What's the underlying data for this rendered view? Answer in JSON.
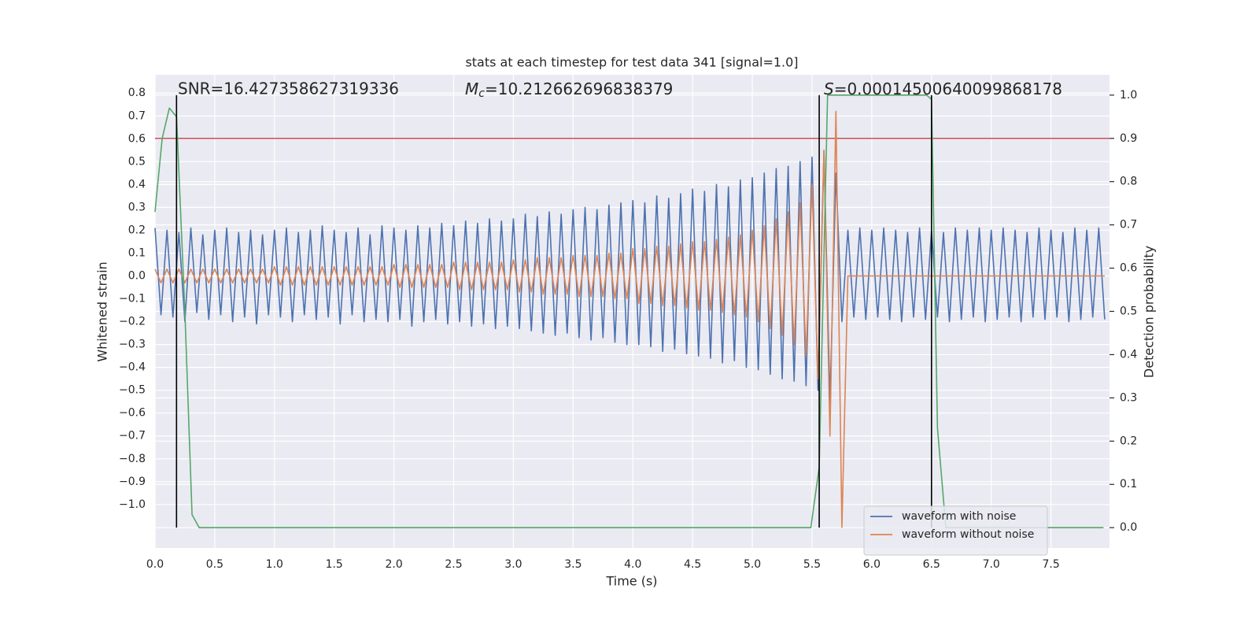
{
  "chart_data": {
    "type": "line",
    "title": "stats at each timestep for test data 341 [signal=1.0]",
    "xlabel": "Time (s)",
    "ylabel": "Whitened strain",
    "y2label": "Detection probability",
    "xlim": [
      0,
      7.99
    ],
    "ylim": [
      -1.19,
      0.88
    ],
    "y2lim": [
      -0.047,
      1.047
    ],
    "xticks": [
      {
        "value": 0,
        "label": "0.0"
      },
      {
        "value": 0.5,
        "label": "0.5"
      },
      {
        "value": 1,
        "label": "1.0"
      },
      {
        "value": 1.5,
        "label": "1.5"
      },
      {
        "value": 2,
        "label": "2.0"
      },
      {
        "value": 2.5,
        "label": "2.5"
      },
      {
        "value": 3,
        "label": "3.0"
      },
      {
        "value": 3.5,
        "label": "3.5"
      },
      {
        "value": 4,
        "label": "4.0"
      },
      {
        "value": 4.5,
        "label": "4.5"
      },
      {
        "value": 5,
        "label": "5.0"
      },
      {
        "value": 5.5,
        "label": "5.5"
      },
      {
        "value": 6,
        "label": "6.0"
      },
      {
        "value": 6.5,
        "label": "6.5"
      },
      {
        "value": 7,
        "label": "7.0"
      },
      {
        "value": 7.5,
        "label": "7.5"
      }
    ],
    "yticks": [
      {
        "value": 0.8,
        "label": "0.8"
      },
      {
        "value": 0.7,
        "label": "0.7"
      },
      {
        "value": 0.6,
        "label": "0.6"
      },
      {
        "value": 0.5,
        "label": "0.5"
      },
      {
        "value": 0.4,
        "label": "0.4"
      },
      {
        "value": 0.3,
        "label": "0.3"
      },
      {
        "value": 0.2,
        "label": "0.2"
      },
      {
        "value": 0.1,
        "label": "0.1"
      },
      {
        "value": 0,
        "label": "0.0"
      },
      {
        "value": -0.1,
        "label": "−0.1"
      },
      {
        "value": -0.2,
        "label": "−0.2"
      },
      {
        "value": -0.3,
        "label": "−0.3"
      },
      {
        "value": -0.4,
        "label": "−0.4"
      },
      {
        "value": -0.5,
        "label": "−0.5"
      },
      {
        "value": -0.6,
        "label": "−0.6"
      },
      {
        "value": -0.7,
        "label": "−0.7"
      },
      {
        "value": -0.8,
        "label": "−0.8"
      },
      {
        "value": -0.9,
        "label": "−0.9"
      },
      {
        "value": -1,
        "label": "−1.0"
      }
    ],
    "y2ticks": [
      {
        "value": 0,
        "label": "0.0"
      },
      {
        "value": 0.1,
        "label": "0.1"
      },
      {
        "value": 0.2,
        "label": "0.2"
      },
      {
        "value": 0.3,
        "label": "0.3"
      },
      {
        "value": 0.4,
        "label": "0.4"
      },
      {
        "value": 0.5,
        "label": "0.5"
      },
      {
        "value": 0.6,
        "label": "0.6"
      },
      {
        "value": 0.7,
        "label": "0.7"
      },
      {
        "value": 0.8,
        "label": "0.8"
      },
      {
        "value": 0.9,
        "label": "0.9"
      },
      {
        "value": 1,
        "label": "1.0"
      }
    ],
    "grid": true,
    "legend": "lower right",
    "annotations": [
      {
        "text": "SNR=16.427358627319336"
      },
      {
        "symbol": "M",
        "subscript": "c",
        "text": "=10.212662696838379"
      },
      {
        "symbol": "S",
        "text": "=0.00014500640099868178"
      }
    ],
    "threshold": {
      "value": 0.9,
      "axis": "y2",
      "color": "#c44e52"
    },
    "vlines": {
      "x": [
        0.18,
        5.56,
        6.5
      ],
      "color": "#000000"
    },
    "series": [
      {
        "name": "waveform with noise",
        "color": "#4c72b0",
        "x": [
          0,
          0.05,
          0.1,
          0.15,
          0.2,
          0.25,
          0.3,
          0.35,
          0.4,
          0.45,
          0.5,
          0.55,
          0.6,
          0.65,
          0.7,
          0.75,
          0.8,
          0.85,
          0.9,
          0.95,
          1,
          1.05,
          1.1,
          1.15,
          1.2,
          1.25,
          1.3,
          1.35,
          1.4,
          1.45,
          1.5,
          1.55,
          1.6,
          1.65,
          1.7,
          1.75,
          1.8,
          1.85,
          1.9,
          1.95,
          2,
          2.05,
          2.1,
          2.15,
          2.2,
          2.25,
          2.3,
          2.35,
          2.4,
          2.45,
          2.5,
          2.55,
          2.6,
          2.65,
          2.7,
          2.75,
          2.8,
          2.85,
          2.9,
          2.95,
          3,
          3.05,
          3.1,
          3.15,
          3.2,
          3.25,
          3.3,
          3.35,
          3.4,
          3.45,
          3.5,
          3.55,
          3.6,
          3.65,
          3.7,
          3.75,
          3.8,
          3.85,
          3.9,
          3.95,
          4,
          4.05,
          4.1,
          4.15,
          4.2,
          4.25,
          4.3,
          4.35,
          4.4,
          4.45,
          4.5,
          4.55,
          4.6,
          4.65,
          4.7,
          4.75,
          4.8,
          4.85,
          4.9,
          4.95,
          5,
          5.05,
          5.1,
          5.15,
          5.2,
          5.25,
          5.3,
          5.35,
          5.4,
          5.45,
          5.5,
          5.55,
          5.6,
          5.65,
          5.7,
          5.75,
          5.8,
          5.85,
          5.9,
          5.95,
          6,
          6.05,
          6.1,
          6.15,
          6.2,
          6.25,
          6.3,
          6.35,
          6.4,
          6.45,
          6.5,
          6.55,
          6.6,
          6.65,
          6.7,
          6.75,
          6.8,
          6.85,
          6.9,
          6.95,
          7,
          7.05,
          7.1,
          7.15,
          7.2,
          7.25,
          7.3,
          7.35,
          7.4,
          7.45,
          7.5,
          7.55,
          7.6,
          7.65,
          7.7,
          7.75,
          7.8,
          7.85,
          7.9,
          7.95
        ],
        "values": [
          0.21,
          -0.17,
          0.2,
          -0.18,
          0.19,
          -0.2,
          0.21,
          -0.16,
          0.18,
          -0.19,
          0.2,
          -0.17,
          0.21,
          -0.2,
          0.19,
          -0.18,
          0.2,
          -0.21,
          0.18,
          -0.17,
          0.2,
          -0.18,
          0.21,
          -0.2,
          0.19,
          -0.17,
          0.2,
          -0.19,
          0.22,
          -0.18,
          0.2,
          -0.21,
          0.19,
          -0.17,
          0.21,
          -0.2,
          0.18,
          -0.19,
          0.22,
          -0.2,
          0.21,
          -0.19,
          0.2,
          -0.22,
          0.22,
          -0.2,
          0.21,
          -0.19,
          0.23,
          -0.21,
          0.22,
          -0.2,
          0.24,
          -0.22,
          0.23,
          -0.21,
          0.25,
          -0.23,
          0.24,
          -0.22,
          0.25,
          -0.23,
          0.27,
          -0.24,
          0.26,
          -0.25,
          0.28,
          -0.26,
          0.27,
          -0.25,
          0.29,
          -0.27,
          0.3,
          -0.28,
          0.29,
          -0.27,
          0.31,
          -0.29,
          0.32,
          -0.3,
          0.33,
          -0.3,
          0.32,
          -0.31,
          0.35,
          -0.33,
          0.34,
          -0.32,
          0.36,
          -0.34,
          0.38,
          -0.35,
          0.37,
          -0.36,
          0.4,
          -0.38,
          0.39,
          -0.37,
          0.42,
          -0.4,
          0.43,
          -0.41,
          0.45,
          -0.43,
          0.47,
          -0.45,
          0.48,
          -0.46,
          0.5,
          -0.48,
          0.52,
          -0.5,
          0.55,
          -0.55,
          0.45,
          -0.2,
          0.2,
          -0.18,
          0.21,
          -0.19,
          0.2,
          -0.18,
          0.21,
          -0.19,
          0.2,
          -0.2,
          0.19,
          -0.18,
          0.21,
          -0.19,
          0.2,
          -0.18,
          0.19,
          -0.2,
          0.21,
          -0.19,
          0.2,
          -0.18,
          0.21,
          -0.2,
          0.2,
          -0.19,
          0.21,
          -0.18,
          0.2,
          -0.2,
          0.19,
          -0.18,
          0.21,
          -0.19,
          0.2,
          -0.18,
          0.19,
          -0.2,
          0.21,
          -0.19,
          0.2,
          -0.18,
          0.21,
          -0.19
        ]
      },
      {
        "name": "waveform without noise",
        "color": "#dd8452",
        "x": [
          0,
          0.05,
          0.1,
          0.15,
          0.2,
          0.25,
          0.3,
          0.35,
          0.4,
          0.45,
          0.5,
          0.55,
          0.6,
          0.65,
          0.7,
          0.75,
          0.8,
          0.85,
          0.9,
          0.95,
          1,
          1.05,
          1.1,
          1.15,
          1.2,
          1.25,
          1.3,
          1.35,
          1.4,
          1.45,
          1.5,
          1.55,
          1.6,
          1.65,
          1.7,
          1.75,
          1.8,
          1.85,
          1.9,
          1.95,
          2,
          2.05,
          2.1,
          2.15,
          2.2,
          2.25,
          2.3,
          2.35,
          2.4,
          2.45,
          2.5,
          2.55,
          2.6,
          2.65,
          2.7,
          2.75,
          2.8,
          2.85,
          2.9,
          2.95,
          3,
          3.05,
          3.1,
          3.15,
          3.2,
          3.25,
          3.3,
          3.35,
          3.4,
          3.45,
          3.5,
          3.55,
          3.6,
          3.65,
          3.7,
          3.75,
          3.8,
          3.85,
          3.9,
          3.95,
          4,
          4.05,
          4.1,
          4.15,
          4.2,
          4.25,
          4.3,
          4.35,
          4.4,
          4.45,
          4.5,
          4.55,
          4.6,
          4.65,
          4.7,
          4.75,
          4.8,
          4.85,
          4.9,
          4.95,
          5,
          5.05,
          5.1,
          5.15,
          5.2,
          5.25,
          5.3,
          5.35,
          5.4,
          5.45,
          5.5,
          5.55,
          5.6,
          5.65,
          5.7,
          5.75,
          5.8,
          5.85,
          5.9,
          5.95,
          6,
          6.05,
          6.1,
          6.15,
          6.2,
          6.25,
          6.3,
          6.35,
          6.4,
          6.45,
          6.5,
          6.55,
          6.6,
          6.65,
          6.7,
          6.75,
          6.8,
          6.85,
          6.9,
          6.95,
          7,
          7.05,
          7.1,
          7.15,
          7.2,
          7.25,
          7.3,
          7.35,
          7.4,
          7.45,
          7.5,
          7.55,
          7.6,
          7.65,
          7.7,
          7.75,
          7.8,
          7.85,
          7.9,
          7.95
        ],
        "values": [
          0.03,
          -0.03,
          0.03,
          -0.03,
          0.03,
          -0.03,
          0.03,
          -0.03,
          0.03,
          -0.03,
          0.03,
          -0.03,
          0.03,
          -0.03,
          0.03,
          -0.03,
          0.03,
          -0.03,
          0.03,
          -0.03,
          0.04,
          -0.04,
          0.04,
          -0.04,
          0.04,
          -0.04,
          0.04,
          -0.04,
          0.04,
          -0.04,
          0.04,
          -0.04,
          0.04,
          -0.04,
          0.04,
          -0.04,
          0.04,
          -0.04,
          0.04,
          -0.04,
          0.05,
          -0.05,
          0.05,
          -0.05,
          0.05,
          -0.05,
          0.05,
          -0.05,
          0.05,
          -0.05,
          0.06,
          -0.06,
          0.06,
          -0.06,
          0.06,
          -0.06,
          0.06,
          -0.06,
          0.06,
          -0.06,
          0.07,
          -0.07,
          0.07,
          -0.07,
          0.08,
          -0.08,
          0.08,
          -0.08,
          0.08,
          -0.08,
          0.09,
          -0.09,
          0.09,
          -0.09,
          0.09,
          -0.09,
          0.1,
          -0.1,
          0.1,
          -0.1,
          0.12,
          -0.12,
          0.12,
          -0.12,
          0.13,
          -0.13,
          0.13,
          -0.13,
          0.14,
          -0.14,
          0.15,
          -0.15,
          0.15,
          -0.15,
          0.16,
          -0.16,
          0.17,
          -0.17,
          0.18,
          -0.18,
          0.2,
          -0.2,
          0.22,
          -0.23,
          0.25,
          -0.26,
          0.28,
          -0.3,
          0.32,
          -0.35,
          0.4,
          -0.45,
          0.55,
          -0.7,
          0.72,
          -1.1,
          0,
          0,
          0,
          0,
          0,
          0,
          0,
          0,
          0,
          0,
          0,
          0,
          0,
          0,
          0,
          0,
          0,
          0,
          0,
          0,
          0,
          0,
          0,
          0,
          0,
          0,
          0,
          0,
          0,
          0,
          0,
          0,
          0,
          0,
          0,
          0,
          0,
          0,
          0,
          0,
          0,
          0,
          0,
          0
        ]
      },
      {
        "name": "detection probability",
        "color": "#55a868",
        "axis": "y2",
        "legend": false,
        "x": [
          0,
          0.06,
          0.12,
          0.18,
          0.25,
          0.31,
          0.37,
          5.49,
          5.56,
          5.63,
          6.46,
          6.5,
          6.55,
          6.62,
          7.94
        ],
        "values": [
          0.73,
          0.9,
          0.97,
          0.95,
          0.5,
          0.03,
          0,
          0,
          0.14,
          1,
          1,
          0.99,
          0.23,
          0,
          0
        ]
      }
    ]
  }
}
